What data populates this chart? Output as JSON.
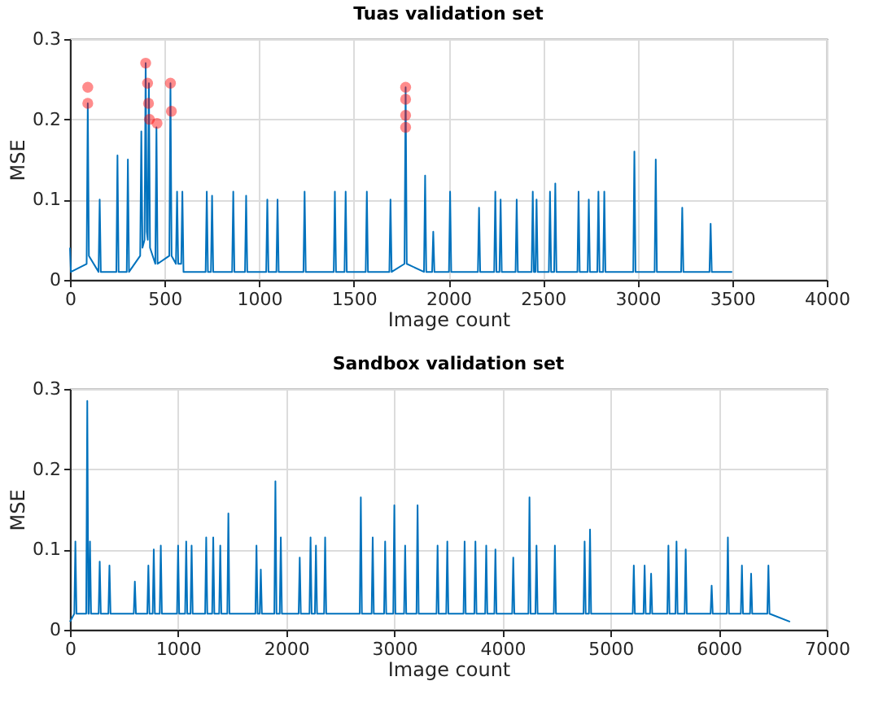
{
  "chart_data": [
    {
      "type": "line",
      "title": "Tuas validation set",
      "xlabel": "Image count",
      "ylabel": "MSE",
      "xlim": [
        0,
        4000
      ],
      "xticks": [
        0,
        500,
        1000,
        1500,
        2000,
        2500,
        3000,
        3500,
        4000
      ],
      "ylim": [
        0,
        0.3
      ],
      "yticks": [
        0,
        0.1,
        0.2,
        0.3
      ],
      "grid": true,
      "series": [
        {
          "color": "#0072bd",
          "x": [
            0,
            5,
            88,
            94,
            100,
            151,
            157,
            163,
            245,
            251,
            257,
            300,
            306,
            312,
            371,
            377,
            383,
            394,
            400,
            406,
            411,
            417,
            423,
            451,
            457,
            463,
            525,
            531,
            537,
            560,
            566,
            572,
            588,
            594,
            600,
            717,
            723,
            729,
            745,
            751,
            757,
            857,
            863,
            869,
            925,
            931,
            937,
            1037,
            1043,
            1049,
            1091,
            1097,
            1103,
            1234,
            1240,
            1246,
            1394,
            1400,
            1406,
            1451,
            1457,
            1463,
            1563,
            1569,
            1575,
            1688,
            1694,
            1700,
            1768,
            1774,
            1780,
            1871,
            1877,
            1883,
            1914,
            1920,
            1926,
            2003,
            2009,
            2015,
            2156,
            2162,
            2168,
            2242,
            2248,
            2254,
            2270,
            2276,
            2282,
            2355,
            2361,
            2367,
            2440,
            2446,
            2452,
            2460,
            2466,
            2472,
            2531,
            2537,
            2543,
            2559,
            2565,
            2571,
            2682,
            2688,
            2694,
            2736,
            2742,
            2748,
            2787,
            2793,
            2799,
            2818,
            2824,
            2830,
            2977,
            2983,
            2989,
            3090,
            3096,
            3102,
            3230,
            3236,
            3242,
            3380,
            3386,
            3392,
            3500
          ],
          "values": [
            0.04,
            0.01,
            0.02,
            0.22,
            0.03,
            0.01,
            0.1,
            0.01,
            0.01,
            0.155,
            0.01,
            0.01,
            0.15,
            0.01,
            0.03,
            0.185,
            0.04,
            0.05,
            0.27,
            0.06,
            0.05,
            0.245,
            0.04,
            0.02,
            0.19,
            0.02,
            0.03,
            0.245,
            0.03,
            0.02,
            0.11,
            0.02,
            0.02,
            0.11,
            0.01,
            0.01,
            0.11,
            0.01,
            0.01,
            0.105,
            0.01,
            0.01,
            0.11,
            0.01,
            0.01,
            0.105,
            0.01,
            0.01,
            0.1,
            0.01,
            0.01,
            0.1,
            0.01,
            0.01,
            0.11,
            0.01,
            0.01,
            0.11,
            0.01,
            0.01,
            0.11,
            0.01,
            0.01,
            0.11,
            0.01,
            0.01,
            0.1,
            0.01,
            0.02,
            0.24,
            0.02,
            0.01,
            0.13,
            0.01,
            0.01,
            0.06,
            0.01,
            0.01,
            0.11,
            0.01,
            0.01,
            0.09,
            0.01,
            0.01,
            0.11,
            0.01,
            0.01,
            0.1,
            0.01,
            0.01,
            0.1,
            0.01,
            0.01,
            0.11,
            0.01,
            0.01,
            0.1,
            0.01,
            0.01,
            0.11,
            0.01,
            0.01,
            0.12,
            0.01,
            0.01,
            0.11,
            0.01,
            0.01,
            0.1,
            0.01,
            0.01,
            0.11,
            0.01,
            0.01,
            0.11,
            0.01,
            0.01,
            0.16,
            0.01,
            0.01,
            0.15,
            0.01,
            0.01,
            0.09,
            0.01,
            0.01,
            0.07,
            0.01,
            0.01
          ]
        },
        {
          "type": "scatter",
          "color": "#ff0000",
          "marker": "circle",
          "x": [
            94,
            94,
            400,
            410,
            415,
            420,
            460,
            531,
            536,
            1774,
            1774,
            1774,
            1774
          ],
          "values": [
            0.24,
            0.22,
            0.27,
            0.245,
            0.22,
            0.2,
            0.195,
            0.245,
            0.21,
            0.24,
            0.225,
            0.205,
            0.19
          ]
        }
      ]
    },
    {
      "type": "line",
      "title": "Sandbox validation set",
      "xlabel": "Image count",
      "ylabel": "MSE",
      "xlim": [
        0,
        7000
      ],
      "xticks": [
        0,
        1000,
        2000,
        3000,
        4000,
        5000,
        6000,
        7000
      ],
      "ylim": [
        0,
        0.3
      ],
      "yticks": [
        0,
        0.1,
        0.2,
        0.3
      ],
      "grid": true,
      "series": [
        {
          "color": "#0072bd",
          "x": [
            0,
            40,
            50,
            60,
            150,
            160,
            170,
            175,
            185,
            195,
            265,
            275,
            285,
            355,
            365,
            375,
            590,
            600,
            610,
            715,
            725,
            735,
            765,
            775,
            785,
            830,
            840,
            850,
            990,
            1000,
            1010,
            1065,
            1075,
            1085,
            1115,
            1125,
            1135,
            1250,
            1260,
            1270,
            1315,
            1325,
            1335,
            1380,
            1390,
            1400,
            1455,
            1465,
            1475,
            1715,
            1725,
            1735,
            1755,
            1765,
            1775,
            1890,
            1900,
            1910,
            1940,
            1950,
            1960,
            2115,
            2125,
            2135,
            2215,
            2225,
            2235,
            2265,
            2275,
            2285,
            2350,
            2360,
            2370,
            2680,
            2690,
            2700,
            2790,
            2800,
            2810,
            2905,
            2915,
            2925,
            2990,
            3000,
            3010,
            3090,
            3100,
            3110,
            3205,
            3215,
            3225,
            3390,
            3400,
            3410,
            3480,
            3490,
            3500,
            3640,
            3650,
            3660,
            3740,
            3750,
            3760,
            3840,
            3850,
            3860,
            3925,
            3935,
            3945,
            4090,
            4100,
            4110,
            4240,
            4250,
            4260,
            4305,
            4315,
            4325,
            4475,
            4485,
            4495,
            4750,
            4760,
            4770,
            4800,
            4810,
            4820,
            5205,
            5215,
            5225,
            5305,
            5315,
            5325,
            5365,
            5375,
            5385,
            5525,
            5535,
            5545,
            5600,
            5610,
            5620,
            5685,
            5695,
            5705,
            5925,
            5935,
            5945,
            6075,
            6085,
            6095,
            6205,
            6215,
            6225,
            6290,
            6300,
            6310,
            6450,
            6460,
            6470,
            6660
          ],
          "values": [
            0.01,
            0.02,
            0.11,
            0.02,
            0.02,
            0.285,
            0.02,
            0.02,
            0.11,
            0.02,
            0.02,
            0.085,
            0.02,
            0.02,
            0.08,
            0.02,
            0.02,
            0.06,
            0.02,
            0.02,
            0.08,
            0.02,
            0.02,
            0.1,
            0.02,
            0.02,
            0.105,
            0.02,
            0.02,
            0.105,
            0.02,
            0.02,
            0.11,
            0.02,
            0.02,
            0.105,
            0.02,
            0.02,
            0.115,
            0.02,
            0.02,
            0.115,
            0.02,
            0.02,
            0.105,
            0.02,
            0.02,
            0.145,
            0.02,
            0.02,
            0.105,
            0.02,
            0.02,
            0.075,
            0.02,
            0.02,
            0.185,
            0.02,
            0.02,
            0.115,
            0.02,
            0.02,
            0.09,
            0.02,
            0.02,
            0.115,
            0.02,
            0.02,
            0.105,
            0.02,
            0.02,
            0.115,
            0.02,
            0.02,
            0.165,
            0.02,
            0.02,
            0.115,
            0.02,
            0.02,
            0.11,
            0.02,
            0.02,
            0.155,
            0.02,
            0.02,
            0.105,
            0.02,
            0.02,
            0.155,
            0.02,
            0.02,
            0.105,
            0.02,
            0.02,
            0.11,
            0.02,
            0.02,
            0.11,
            0.02,
            0.02,
            0.11,
            0.02,
            0.02,
            0.105,
            0.02,
            0.02,
            0.1,
            0.02,
            0.02,
            0.09,
            0.02,
            0.02,
            0.165,
            0.02,
            0.02,
            0.105,
            0.02,
            0.02,
            0.105,
            0.02,
            0.02,
            0.11,
            0.02,
            0.02,
            0.125,
            0.02,
            0.02,
            0.08,
            0.02,
            0.02,
            0.08,
            0.02,
            0.02,
            0.07,
            0.02,
            0.02,
            0.105,
            0.02,
            0.02,
            0.11,
            0.02,
            0.02,
            0.1,
            0.02,
            0.02,
            0.055,
            0.02,
            0.02,
            0.115,
            0.02,
            0.02,
            0.08,
            0.02,
            0.02,
            0.07,
            0.02,
            0.02,
            0.08,
            0.02,
            0.01
          ]
        }
      ]
    }
  ]
}
